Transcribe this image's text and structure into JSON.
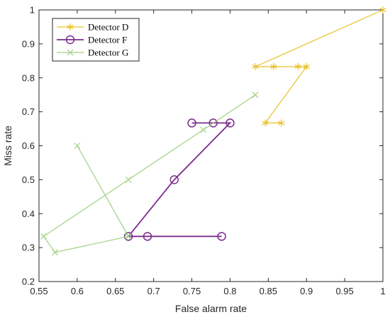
{
  "chart_data": {
    "type": "line",
    "xlabel": "False alarm rate",
    "ylabel": "Miss rate",
    "xlim": [
      0.55,
      1
    ],
    "ylim": [
      0.2,
      1
    ],
    "xticks": [
      "0.55",
      "0.6",
      "0.65",
      "0.7",
      "0.75",
      "0.8",
      "0.85",
      "0.9",
      "0.95",
      "1"
    ],
    "yticks": [
      "0.2",
      "0.3",
      "0.4",
      "0.5",
      "0.6",
      "0.7",
      "0.8",
      "0.9",
      "1"
    ],
    "grid": false,
    "legend_position": "top-left",
    "series": [
      {
        "name": "Detector D",
        "color": "#e6c229",
        "marker": "asterisk",
        "points": [
          [
            1.0,
            1.0
          ],
          [
            0.833,
            0.833
          ],
          [
            0.857,
            0.833
          ],
          [
            0.889,
            0.833
          ],
          [
            0.9,
            0.833
          ],
          [
            0.846,
            0.667
          ],
          [
            0.867,
            0.667
          ]
        ]
      },
      {
        "name": "Detector F",
        "color": "#7b2d8e",
        "marker": "circle",
        "points": [
          [
            0.75,
            0.667
          ],
          [
            0.778,
            0.667
          ],
          [
            0.8,
            0.667
          ],
          [
            0.727,
            0.5
          ],
          [
            0.667,
            0.333
          ],
          [
            0.692,
            0.333
          ],
          [
            0.789,
            0.333
          ]
        ]
      },
      {
        "name": "Detector G",
        "color": "#9fd17f",
        "marker": "x",
        "points": [
          [
            0.833,
            0.75
          ],
          [
            0.765,
            0.647
          ],
          [
            0.667,
            0.5
          ],
          [
            0.556,
            0.333
          ],
          [
            0.571,
            0.286
          ],
          [
            0.667,
            0.333
          ],
          [
            0.6,
            0.6
          ]
        ]
      }
    ]
  }
}
